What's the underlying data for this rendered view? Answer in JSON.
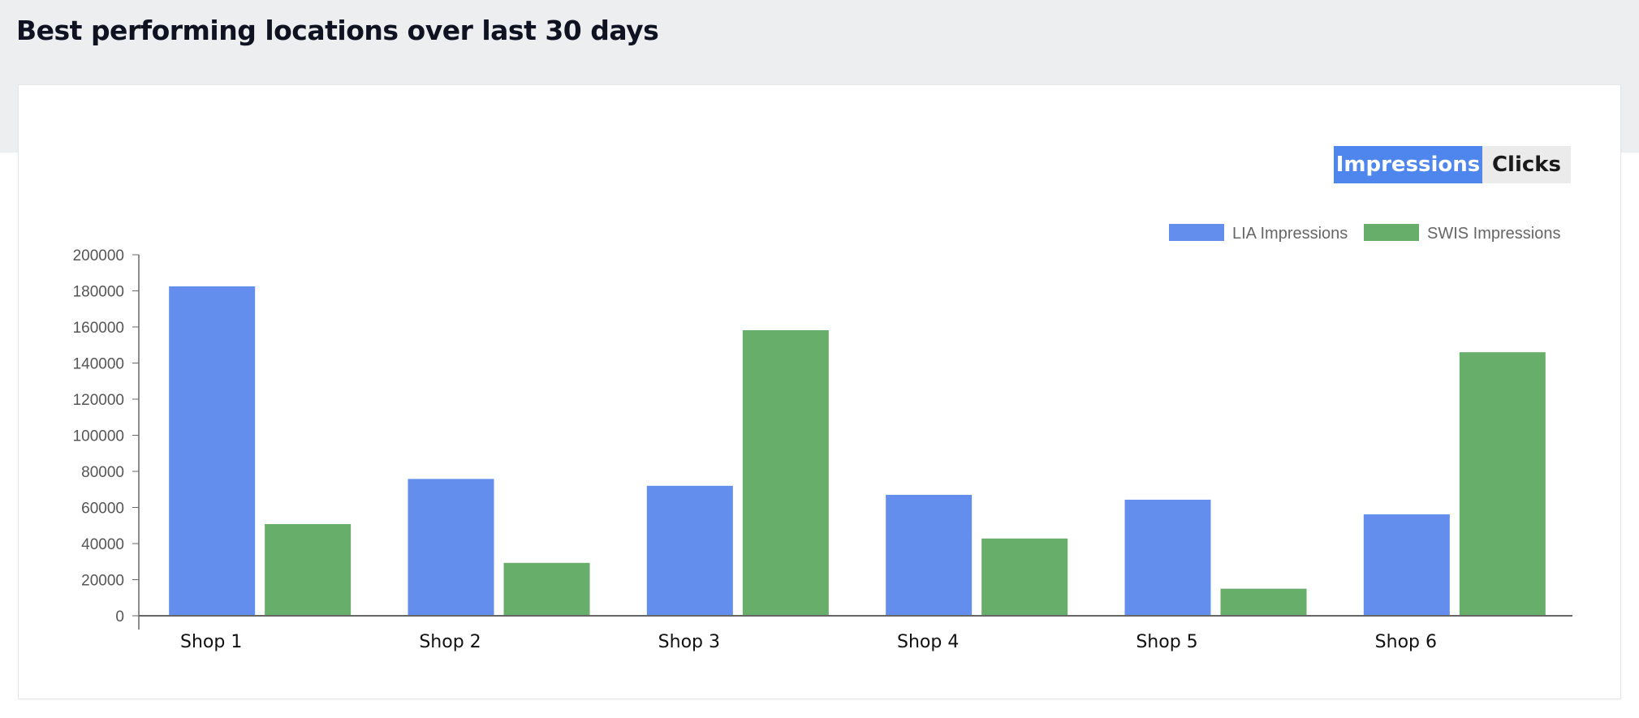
{
  "page": {
    "title": "Best performing locations over last 30 days"
  },
  "toggle": {
    "impressions_label": "Impressions",
    "clicks_label": "Clicks",
    "active": "Impressions"
  },
  "colors": {
    "lia": "#648eed",
    "swis": "#67ae6b",
    "axis": "#666666",
    "toggle_active": "#4f86ee"
  },
  "chart_data": {
    "type": "bar",
    "categories": [
      "Shop 1",
      "Shop 2",
      "Shop 3",
      "Shop 4",
      "Shop 5",
      "Shop 6"
    ],
    "series": [
      {
        "name": "LIA Impressions",
        "values": [
          182500,
          75800,
          72000,
          67000,
          64300,
          56200
        ]
      },
      {
        "name": "SWIS Impressions",
        "values": [
          50800,
          29300,
          158200,
          42800,
          15000,
          146000
        ]
      }
    ],
    "yticks": [
      0,
      20000,
      40000,
      60000,
      80000,
      100000,
      120000,
      140000,
      160000,
      180000,
      200000
    ],
    "ylim": [
      0,
      200000
    ],
    "grid": false,
    "legend_position": "top-right",
    "title": "",
    "xlabel": "",
    "ylabel": ""
  }
}
